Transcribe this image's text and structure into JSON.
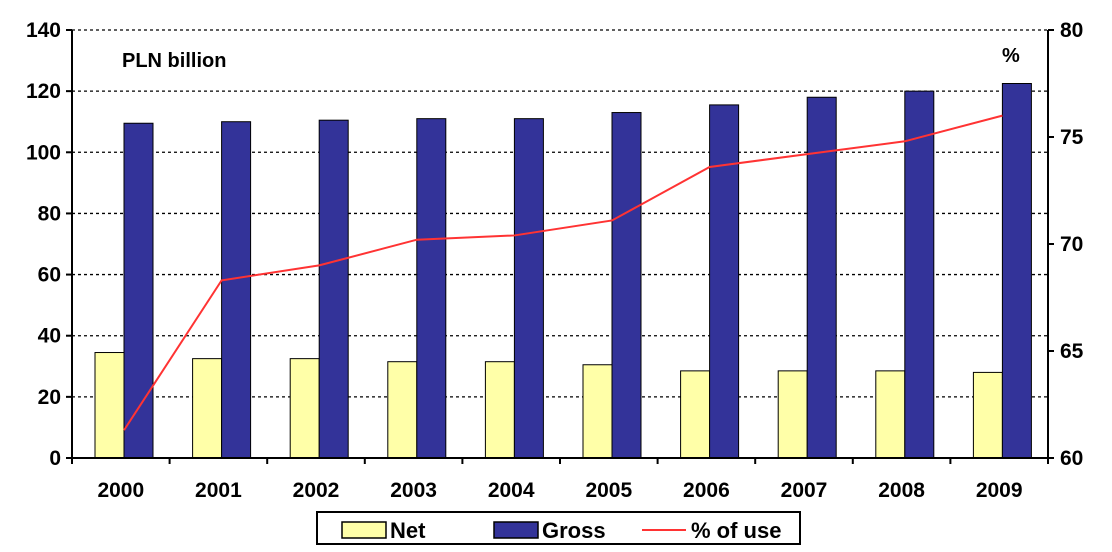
{
  "chart_data": {
    "type": "bar",
    "categories": [
      "2000",
      "2001",
      "2002",
      "2003",
      "2004",
      "2005",
      "2006",
      "2007",
      "2008",
      "2009"
    ],
    "series": [
      {
        "name": "Net",
        "type": "bar",
        "axis": "left",
        "color": "#FFFFA8",
        "values": [
          34.5,
          32.5,
          32.5,
          31.5,
          31.5,
          30.5,
          28.5,
          28.5,
          28.5,
          28.0
        ]
      },
      {
        "name": "Gross",
        "type": "bar",
        "axis": "left",
        "color": "#333399",
        "values": [
          109.5,
          110,
          110.5,
          111,
          111,
          113,
          115.5,
          118,
          120,
          122.5
        ]
      },
      {
        "name": "% of use",
        "type": "line",
        "axis": "right",
        "color": "#FF3333",
        "values": [
          61.3,
          68.3,
          69.0,
          70.2,
          70.4,
          71.1,
          73.6,
          74.2,
          74.8,
          76.0
        ]
      }
    ],
    "y_left": {
      "label": "PLN billion",
      "range": [
        0,
        140
      ],
      "ticks": [
        0,
        20,
        40,
        60,
        80,
        100,
        120,
        140
      ]
    },
    "y_right": {
      "label": "%",
      "range": [
        60,
        80
      ],
      "ticks": [
        60,
        65,
        70,
        75,
        80
      ]
    },
    "grid": "dashed horizontal",
    "legend": "bottom"
  }
}
